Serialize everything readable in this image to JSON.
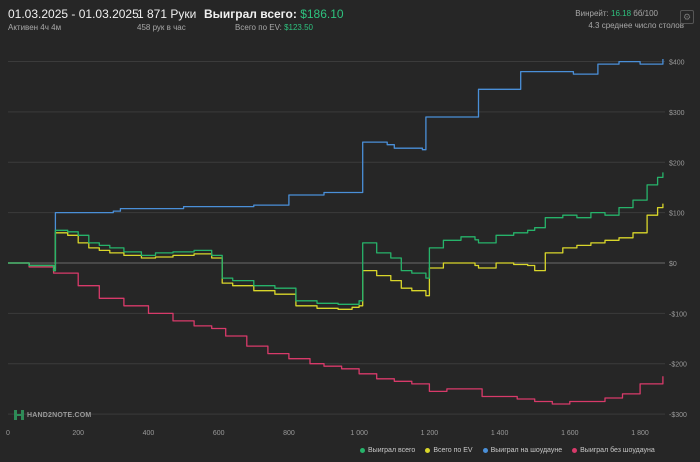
{
  "header": {
    "date_range": "01.03.2025 - 01.03.2025",
    "active": "Активен 4ч 4м",
    "hands": "1 871 Руки",
    "per_hour": "458 рук в час",
    "won_label": "Выиграл всего:",
    "won_value": "$186.10",
    "ev_label": "Всего по EV:",
    "ev_value": "$123.50",
    "winrate_label": "Винрейт:",
    "winrate_value": "16.18",
    "winrate_suffix": "бб/100",
    "tables": "4.3 среднее число столов",
    "settings_icon": "gear-icon"
  },
  "logo": {
    "text": "HAND2NOTE.COM",
    "icon": "hand2note-logo-icon"
  },
  "colors": {
    "won": "#26b36a",
    "ev": "#d9d62a",
    "showdown": "#4a8fd8",
    "nonshowdown": "#d83a6a",
    "accent": "#2ec27e"
  },
  "chart_data": {
    "type": "line",
    "title": "",
    "xlabel": "",
    "ylabel": "",
    "xlim": [
      0,
      1871
    ],
    "ylim": [
      -300,
      400
    ],
    "x_ticks": [
      0,
      200,
      400,
      600,
      800,
      1000,
      1200,
      1400,
      1600,
      1800
    ],
    "x_tick_labels": [
      "0",
      "200",
      "400",
      "600",
      "800",
      "1 000",
      "1 200",
      "1 400",
      "1 600",
      "1 800"
    ],
    "y_ticks": [
      400,
      300,
      200,
      100,
      0,
      -100,
      -200,
      -300
    ],
    "y_tick_labels": [
      "$400",
      "$300",
      "$200",
      "$100",
      "$0",
      "-$100",
      "-$200",
      "-$300"
    ],
    "grid": true,
    "legend_position": "bottom-right",
    "series": [
      {
        "name": "Выиграл всего",
        "color": "#26b36a",
        "x": [
          0,
          60,
          130,
          135,
          170,
          200,
          230,
          260,
          290,
          330,
          380,
          420,
          470,
          530,
          580,
          610,
          640,
          700,
          760,
          820,
          880,
          940,
          980,
          1000,
          1010,
          1050,
          1090,
          1120,
          1150,
          1190,
          1200,
          1240,
          1290,
          1330,
          1340,
          1390,
          1440,
          1480,
          1500,
          1530,
          1580,
          1620,
          1660,
          1700,
          1740,
          1780,
          1820,
          1850,
          1865
        ],
        "y": [
          0,
          -5,
          -15,
          65,
          62,
          55,
          40,
          35,
          30,
          22,
          15,
          20,
          22,
          25,
          15,
          -30,
          -35,
          -45,
          -50,
          -75,
          -80,
          -82,
          -82,
          -75,
          40,
          20,
          10,
          -15,
          -20,
          -30,
          30,
          45,
          52,
          46,
          40,
          55,
          60,
          65,
          70,
          90,
          95,
          90,
          100,
          95,
          110,
          125,
          155,
          170,
          180
        ]
      },
      {
        "name": "Всего по EV",
        "color": "#d9d62a",
        "x": [
          0,
          60,
          130,
          135,
          170,
          200,
          230,
          260,
          290,
          330,
          380,
          420,
          470,
          530,
          580,
          610,
          640,
          700,
          760,
          820,
          880,
          940,
          980,
          1000,
          1010,
          1050,
          1090,
          1120,
          1150,
          1190,
          1200,
          1240,
          1290,
          1330,
          1340,
          1390,
          1440,
          1480,
          1500,
          1530,
          1580,
          1620,
          1660,
          1700,
          1740,
          1780,
          1820,
          1850,
          1865
        ],
        "y": [
          0,
          -5,
          -15,
          60,
          55,
          40,
          30,
          25,
          20,
          15,
          10,
          12,
          15,
          18,
          10,
          -40,
          -45,
          -55,
          -62,
          -85,
          -90,
          -92,
          -88,
          -85,
          -15,
          -25,
          -35,
          -50,
          -55,
          -65,
          -10,
          0,
          0,
          -5,
          -10,
          0,
          -3,
          -5,
          -15,
          20,
          30,
          35,
          40,
          45,
          50,
          60,
          95,
          110,
          118
        ]
      },
      {
        "name": "Выиграл на шоудауне",
        "color": "#4a8fd8",
        "x": [
          0,
          60,
          130,
          135,
          300,
          320,
          500,
          700,
          800,
          900,
          1000,
          1010,
          1080,
          1100,
          1180,
          1190,
          1330,
          1340,
          1440,
          1460,
          1560,
          1610,
          1680,
          1740,
          1800,
          1865
        ],
        "y": [
          0,
          -5,
          -10,
          100,
          103,
          108,
          112,
          115,
          135,
          140,
          140,
          240,
          235,
          228,
          225,
          290,
          290,
          345,
          345,
          380,
          380,
          375,
          395,
          400,
          395,
          405
        ]
      },
      {
        "name": "Выиграл без шоудауна",
        "color": "#d83a6a",
        "x": [
          0,
          60,
          130,
          200,
          260,
          330,
          400,
          470,
          530,
          580,
          620,
          680,
          740,
          800,
          860,
          900,
          950,
          1000,
          1050,
          1100,
          1150,
          1200,
          1250,
          1300,
          1350,
          1400,
          1450,
          1500,
          1550,
          1600,
          1650,
          1700,
          1750,
          1800,
          1865
        ],
        "y": [
          0,
          -8,
          -20,
          -45,
          -70,
          -85,
          -100,
          -115,
          -125,
          -130,
          -145,
          -165,
          -180,
          -190,
          -200,
          -205,
          -210,
          -220,
          -230,
          -235,
          -240,
          -255,
          -250,
          -250,
          -265,
          -265,
          -270,
          -275,
          -280,
          -275,
          -275,
          -268,
          -260,
          -240,
          -225
        ]
      }
    ]
  }
}
